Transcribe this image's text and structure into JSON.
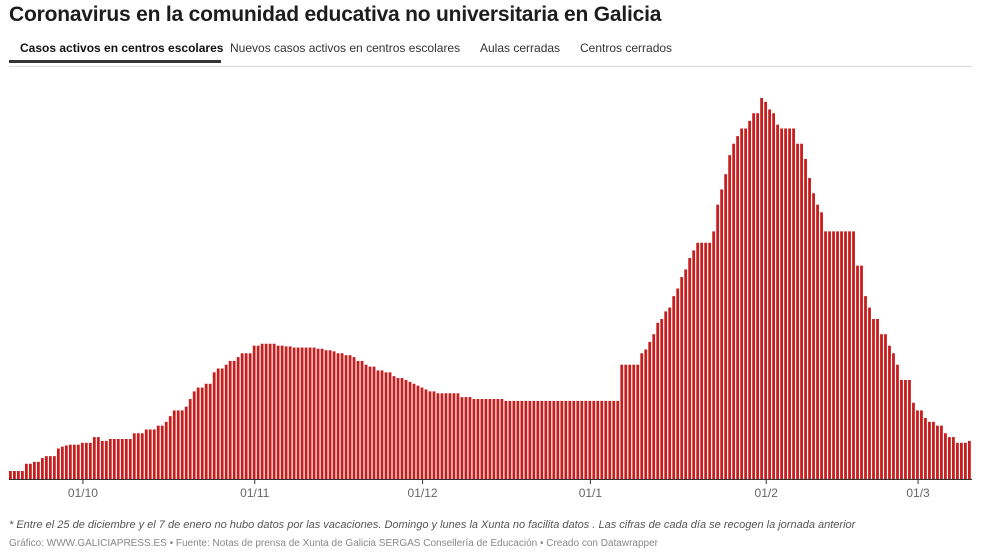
{
  "title": "Coronavirus en la comunidad educativa no universitaria en Galicia",
  "tabs": [
    {
      "label": "Casos activos en centros escolares",
      "active": true
    },
    {
      "label": "Nuevos casos activos en centros escolares",
      "active": false
    },
    {
      "label": "Aulas cerradas",
      "active": false
    },
    {
      "label": "Centros cerrados",
      "active": false
    }
  ],
  "footnote": "* Entre el 25 de diciembre y el 7 de enero no hubo datos por las vacaciones. Domingo y lunes la Xunta no facilita datos . Las cifras de cada día se recogen la jornada anterior",
  "credits": "Gráfico: WWW.GALICIAPRESS.ES • Fuente: Notas de prensa de Xunta de Galicia SERGAS Consellería de Educación • Creado con Datawrapper",
  "colors": {
    "bar": "#c71e1d",
    "axis": "#333333"
  },
  "chart_data": {
    "type": "bar",
    "title": "Casos activos en centros escolares",
    "xlabel": "",
    "ylabel": "",
    "ylim": [
      0,
      1000
    ],
    "grid": false,
    "x_ticks": [
      {
        "label": "01/10",
        "index": 18
      },
      {
        "label": "01/11",
        "index": 61
      },
      {
        "label": "01/12",
        "index": 103
      },
      {
        "label": "01/1",
        "index": 145
      },
      {
        "label": "01/2",
        "index": 189
      },
      {
        "label": "01/3",
        "index": 227
      }
    ],
    "values": [
      21,
      21,
      21,
      21,
      40,
      40,
      45,
      45,
      55,
      60,
      60,
      60,
      80,
      85,
      88,
      90,
      90,
      90,
      95,
      95,
      95,
      110,
      110,
      100,
      100,
      105,
      105,
      105,
      105,
      105,
      105,
      120,
      120,
      120,
      130,
      130,
      130,
      140,
      140,
      150,
      165,
      180,
      180,
      180,
      190,
      210,
      230,
      240,
      240,
      250,
      250,
      280,
      290,
      290,
      300,
      310,
      310,
      320,
      330,
      330,
      330,
      350,
      350,
      355,
      355,
      355,
      355,
      350,
      350,
      348,
      348,
      345,
      345,
      345,
      345,
      345,
      345,
      342,
      342,
      338,
      338,
      335,
      330,
      330,
      325,
      325,
      320,
      310,
      310,
      300,
      295,
      295,
      285,
      285,
      280,
      280,
      270,
      265,
      265,
      260,
      255,
      250,
      245,
      240,
      235,
      230,
      230,
      225,
      225,
      225,
      225,
      225,
      225,
      215,
      215,
      215,
      210,
      210,
      210,
      210,
      210,
      210,
      210,
      210,
      205,
      205,
      205,
      205,
      205,
      205,
      205,
      205,
      205,
      205,
      205,
      205,
      205,
      205,
      205,
      205,
      205,
      205,
      205,
      205,
      205,
      205,
      205,
      205,
      205,
      205,
      205,
      205,
      205,
      300,
      300,
      300,
      300,
      300,
      330,
      340,
      360,
      380,
      410,
      420,
      440,
      450,
      480,
      500,
      530,
      550,
      580,
      600,
      620,
      620,
      620,
      620,
      650,
      720,
      760,
      800,
      850,
      880,
      900,
      920,
      920,
      940,
      960,
      960,
      1000,
      990,
      970,
      960,
      930,
      920,
      920,
      920,
      920,
      880,
      880,
      840,
      790,
      750,
      720,
      700,
      650,
      650,
      650,
      650,
      650,
      650,
      650,
      650,
      560,
      560,
      480,
      450,
      420,
      420,
      380,
      380,
      350,
      330,
      300,
      260,
      260,
      260,
      200,
      180,
      180,
      160,
      150,
      150,
      140,
      140,
      120,
      110,
      110,
      95,
      95,
      95,
      100
    ]
  }
}
